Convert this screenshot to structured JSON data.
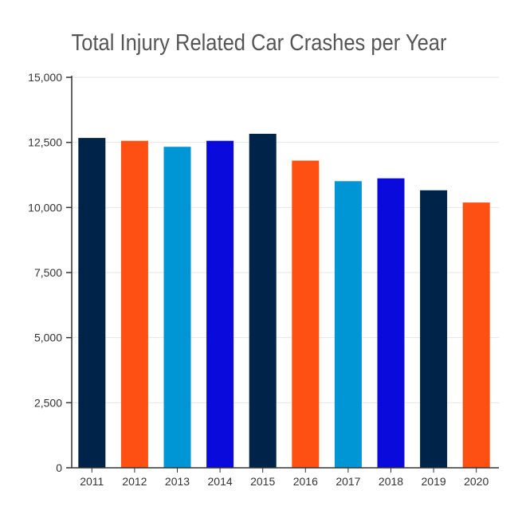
{
  "chart_data": {
    "type": "bar",
    "title": "Total Injury Related Car Crashes per Year",
    "xlabel": "",
    "ylabel": "",
    "categories": [
      "2011",
      "2012",
      "2013",
      "2014",
      "2015",
      "2016",
      "2017",
      "2018",
      "2019",
      "2020"
    ],
    "values": [
      12670,
      12560,
      12330,
      12560,
      12830,
      11800,
      11010,
      11120,
      10660,
      10190
    ],
    "colors": [
      "#00234a",
      "#ff5014",
      "#0096d6",
      "#0a0adc",
      "#00234a",
      "#ff5014",
      "#0096d6",
      "#0a0adc",
      "#00234a",
      "#ff5014"
    ],
    "ylim": [
      0,
      15000
    ],
    "yticks": [
      "0",
      "2,500",
      "5,000",
      "7,500",
      "10,000",
      "12,500",
      "15,000"
    ],
    "ytick_values": [
      0,
      2500,
      5000,
      7500,
      10000,
      12500,
      15000
    ],
    "grid": true,
    "legend": "none"
  }
}
